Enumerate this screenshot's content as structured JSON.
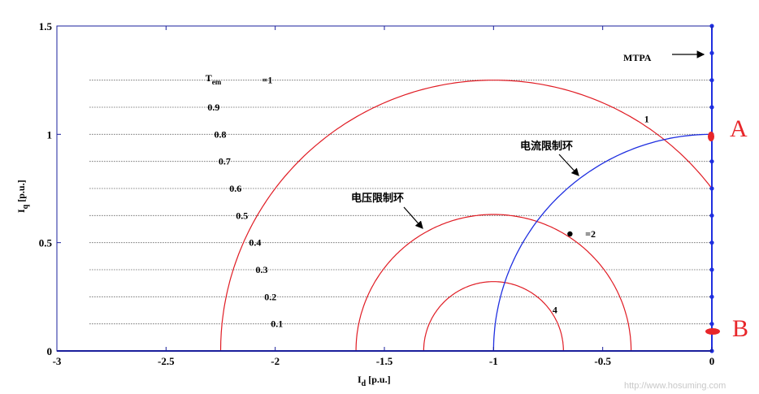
{
  "chart_data": {
    "type": "line",
    "xlabel": "I",
    "xlabel_sub": "d",
    "xlabel_unit": "[p.u.]",
    "ylabel": "I",
    "ylabel_sub": "q",
    "ylabel_unit": "[p.u.]",
    "xlim": [
      -3,
      0
    ],
    "ylim": [
      0,
      1.5
    ],
    "grid": "horizontal dotted torque lines",
    "x_ticks": [
      {
        "v": -3,
        "t": "-3"
      },
      {
        "v": -2.5,
        "t": "-2.5"
      },
      {
        "v": -2,
        "t": "-2"
      },
      {
        "v": -1.5,
        "t": "-1.5"
      },
      {
        "v": -1,
        "t": "-1"
      },
      {
        "v": -0.5,
        "t": "-0.5"
      },
      {
        "v": 0,
        "t": "0"
      }
    ],
    "y_ticks": [
      {
        "v": 0,
        "t": "0"
      },
      {
        "v": 0.5,
        "t": "0.5"
      },
      {
        "v": 1,
        "t": "1"
      },
      {
        "v": 1.5,
        "t": "1.5"
      }
    ],
    "torque_lines": [
      {
        "y": 0.125,
        "label": "0.1",
        "lx": -2.02
      },
      {
        "y": 0.25,
        "label": "0.2",
        "lx": -2.05
      },
      {
        "y": 0.375,
        "label": "0.3",
        "lx": -2.09
      },
      {
        "y": 0.5,
        "label": "0.4",
        "lx": -2.12
      },
      {
        "y": 0.625,
        "label": "0.5",
        "lx": -2.18
      },
      {
        "y": 0.75,
        "label": "0.6",
        "lx": -2.21
      },
      {
        "y": 0.875,
        "label": "0.7",
        "lx": -2.26
      },
      {
        "y": 1.0,
        "label": "0.8",
        "lx": -2.28
      },
      {
        "y": 1.125,
        "label": "0.9",
        "lx": -2.31
      },
      {
        "y": 1.25,
        "label": "=1",
        "lx": -2.06
      }
    ],
    "tem_label": {
      "main": "T",
      "sub": "em",
      "x": -2.32,
      "y": 1.26
    },
    "current_limit_circle": {
      "center_x": 0,
      "radius": 1,
      "from_x": -1,
      "to_x": 0
    },
    "voltage_limit_circles": [
      {
        "center_x": -1,
        "radius": 1.25,
        "label": "1",
        "label_x": -0.31,
        "label_y": 1.07
      },
      {
        "center_x": -1,
        "radius": 0.63,
        "label": "=2",
        "label_x": -0.58,
        "label_y": 0.54
      },
      {
        "center_x": -1,
        "radius": 0.32,
        "label": "4",
        "label_x": -0.73,
        "label_y": 0.19
      }
    ],
    "omega_marker": {
      "x": -0.65,
      "y": 0.54
    },
    "mtpa_points_y": [
      0,
      0.125,
      0.25,
      0.375,
      0.5,
      0.625,
      0.75,
      0.875,
      1.0,
      1.125,
      1.25,
      1.375,
      1.5
    ],
    "mtpa_label": "MTPA",
    "current_limit_label": "电流限制环",
    "voltage_limit_label": "电压限制环"
  },
  "annotations": {
    "point_a": "A",
    "point_b": "B",
    "watermark": "http://www.hosuming.com"
  },
  "colors": {
    "voltage": "#e01c24",
    "current": "#1f2fe0",
    "axis": "#1a1f9c",
    "grid": "#333333",
    "handwriting": "#e8262a"
  }
}
